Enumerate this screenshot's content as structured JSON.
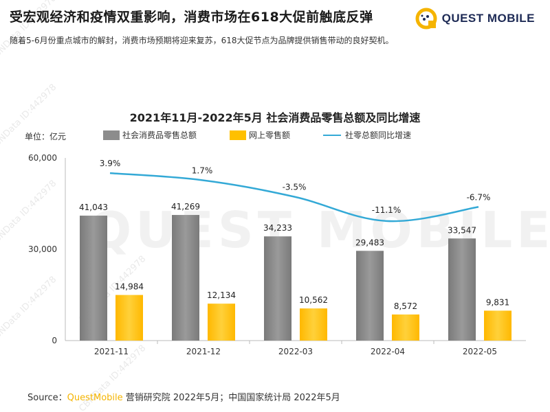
{
  "header": {
    "title": "受宏观经济和疫情双重影响，消费市场在618大促前触底反弹",
    "subtitle": "随着5-6月份重点城市的解封，消费市场预期将迎来复苏，618大促节点为品牌提供销售带动的良好契机。"
  },
  "logo": {
    "text": "QUEST MOBILE",
    "icon": "quest-mobile-logo-icon"
  },
  "unit_label": "单位：亿元",
  "footer": {
    "prefix": "Source：",
    "brand": "QuestMobile",
    "rest": " 营销研究院 2022年5月；中国国家统计局  2022年5月"
  },
  "watermark": {
    "text": "CBNData ID:442978",
    "brand": "QUEST MOBILE"
  },
  "colors": {
    "bar_total": "#8c8c8c",
    "bar_online": "#ffc000",
    "line": "#33a9d6",
    "logo_yellow": "#f5b400",
    "logo_navy": "#1d2a55"
  },
  "chart_data": {
    "type": "bar",
    "title": "2021年11月-2022年5月 社会消费品零售总额及同比增速",
    "categories": [
      "2021-11",
      "2021-12",
      "2022-03",
      "2022-04",
      "2022-05"
    ],
    "yticks": [
      "60,000",
      "30,000",
      "0"
    ],
    "ylim": [
      0,
      60000
    ],
    "series": [
      {
        "name": "社会消费品零售总额",
        "kind": "bar",
        "values": [
          41043,
          41269,
          34233,
          29483,
          33547
        ],
        "labels": [
          "41,043",
          "41,269",
          "34,233",
          "29,483",
          "33,547"
        ]
      },
      {
        "name": "网上零售额",
        "kind": "bar",
        "values": [
          14984,
          12134,
          10562,
          8572,
          9831
        ],
        "labels": [
          "14,984",
          "12,134",
          "10,562",
          "8,572",
          "9,831"
        ]
      },
      {
        "name": "社零总额同比增速",
        "kind": "line",
        "values": [
          3.9,
          1.7,
          -3.5,
          -11.1,
          -6.7
        ],
        "labels": [
          "3.9%",
          "1.7%",
          "-3.5%",
          "-11.1%",
          "-6.7%"
        ]
      }
    ]
  }
}
